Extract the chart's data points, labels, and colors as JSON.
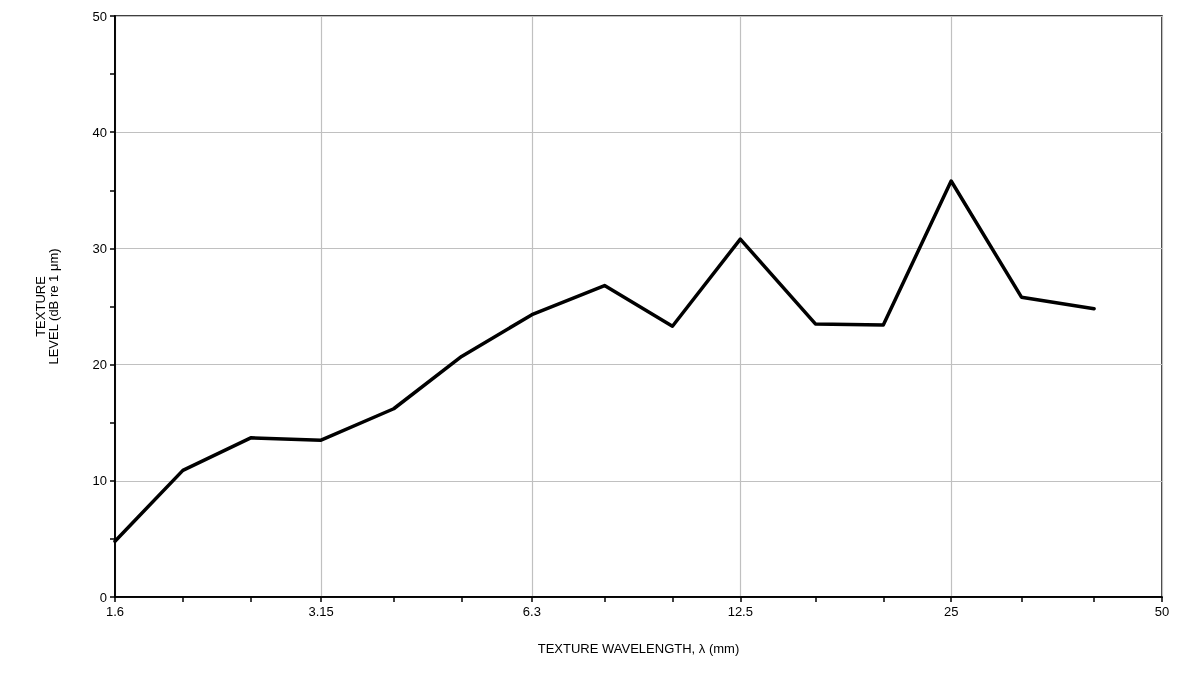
{
  "chart_data": {
    "type": "line",
    "xlabel": "TEXTURE WAVELENGTH, λ (mm)",
    "ylabel": "TEXTURE LEVEL (dB re 1 μm)",
    "x": [
      1.6,
      2,
      2.5,
      3.15,
      4,
      5,
      6.3,
      8,
      10,
      12.5,
      16,
      20,
      25,
      31.5,
      40
    ],
    "series": [
      {
        "color": "#000000",
        "values": [
          4.8,
          10.9,
          13.7,
          13.5,
          16.2,
          20.7,
          24.3,
          26.8,
          23.3,
          30.8,
          23.5,
          23.4,
          35.8,
          25.8,
          24.8
        ]
      }
    ],
    "log": "x",
    "xlim": [
      1.6,
      50
    ],
    "xticks": [
      1.6,
      {
        "value": 2,
        "label": null
      },
      {
        "value": 2.5,
        "label": null
      },
      3.15,
      {
        "value": 4,
        "label": null
      },
      {
        "value": 5,
        "label": null
      },
      6.3,
      {
        "value": 8,
        "label": null
      },
      {
        "value": 10,
        "label": null
      },
      12.5,
      {
        "value": 16,
        "label": null
      },
      {
        "value": 20,
        "label": null
      },
      25,
      {
        "value": 31.5,
        "label": null
      },
      {
        "value": 40,
        "label": null
      },
      50
    ],
    "ylim": [
      0,
      50
    ],
    "yticks": [
      0,
      {
        "value": 5,
        "label": null
      },
      10,
      {
        "value": 15,
        "label": null
      },
      20,
      {
        "value": 25,
        "label": null
      },
      30,
      {
        "value": 35,
        "label": null
      },
      40,
      {
        "value": 45,
        "label": null
      },
      50
    ],
    "grid": true,
    "marker": "none",
    "line_style": "solid"
  }
}
